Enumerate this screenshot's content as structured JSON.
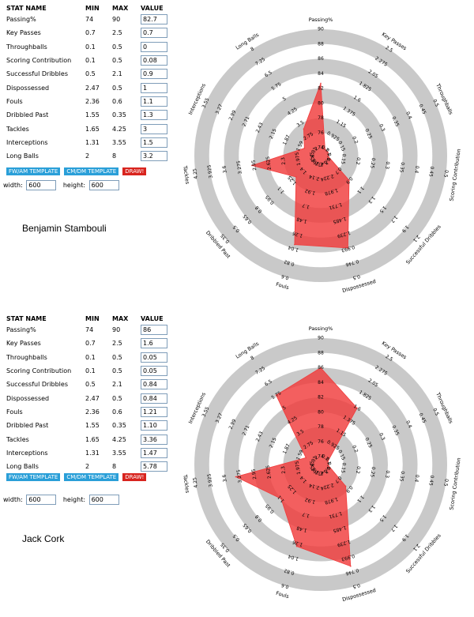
{
  "table_headers": {
    "stat": "STAT NAME",
    "min": "MIN",
    "max": "MAX",
    "value": "VALUE"
  },
  "stats": [
    {
      "name": "Passing%",
      "min": "74",
      "max": "90"
    },
    {
      "name": "Key Passes",
      "min": "0.7",
      "max": "2.5"
    },
    {
      "name": "Throughballs",
      "min": "0.1",
      "max": "0.5"
    },
    {
      "name": "Scoring Contribution",
      "min": "0.1",
      "max": "0.5"
    },
    {
      "name": "Successful Dribbles",
      "min": "0.5",
      "max": "2.1"
    },
    {
      "name": "Dispossessed",
      "min": "2.47",
      "max": "0.5"
    },
    {
      "name": "Fouls",
      "min": "2.36",
      "max": "0.6"
    },
    {
      "name": "Dribbled Past",
      "min": "1.55",
      "max": "0.35"
    },
    {
      "name": "Tackles",
      "min": "1.65",
      "max": "4.25"
    },
    {
      "name": "Interceptions",
      "min": "1.31",
      "max": "3.55"
    },
    {
      "name": "Long Balls",
      "min": "2",
      "max": "8"
    }
  ],
  "buttons": {
    "fw_am": "FW/AM TEMPLATE",
    "cm_dm": "CM/DM TEMPLATE",
    "draw": "DRAW!"
  },
  "dims": {
    "width_label": "width:",
    "height_label": "height:",
    "width": "600",
    "height": "600"
  },
  "colors": {
    "polygon": "#f03c3c",
    "ring_dark": "#c9c9c9",
    "ring_light": "#ffffff",
    "button_blue": "#2a9fd8",
    "button_red": "#d8241e"
  },
  "chart_data": [
    {
      "type": "radar",
      "player": "Benjamin Stambouli",
      "axes": [
        "Passing%",
        "Key Passes",
        "Throughballs",
        "Scoring Contribution",
        "Successful Dribbles",
        "Dispossessed",
        "Fouls",
        "Dribbled Past",
        "Tackles",
        "Interceptions",
        "Long Balls"
      ],
      "axis_min": [
        74,
        0.7,
        0.1,
        0.1,
        0.5,
        2.47,
        2.36,
        1.55,
        1.65,
        1.31,
        2
      ],
      "axis_max": [
        90,
        2.5,
        0.5,
        0.5,
        2.1,
        0.5,
        0.6,
        0.35,
        4.25,
        3.55,
        8
      ],
      "values": [
        "82.7",
        "0.7",
        "0",
        "0.08",
        "0.9",
        "1",
        "1.1",
        "1.3",
        "3",
        "1.5",
        "3.2"
      ]
    },
    {
      "type": "radar",
      "player": "Jack Cork",
      "axes": [
        "Passing%",
        "Key Passes",
        "Throughballs",
        "Scoring Contribution",
        "Successful Dribbles",
        "Dispossessed",
        "Fouls",
        "Dribbled Past",
        "Tackles",
        "Interceptions",
        "Long Balls"
      ],
      "axis_min": [
        74,
        0.7,
        0.1,
        0.1,
        0.5,
        2.47,
        2.36,
        1.55,
        1.65,
        1.31,
        2
      ],
      "axis_max": [
        90,
        2.5,
        0.5,
        0.5,
        2.1,
        0.5,
        0.6,
        0.35,
        4.25,
        3.55,
        8
      ],
      "values": [
        "86",
        "1.6",
        "0.05",
        "0.05",
        "0.84",
        "0.84",
        "1.21",
        "1.10",
        "3.36",
        "1.47",
        "5.78"
      ]
    }
  ]
}
